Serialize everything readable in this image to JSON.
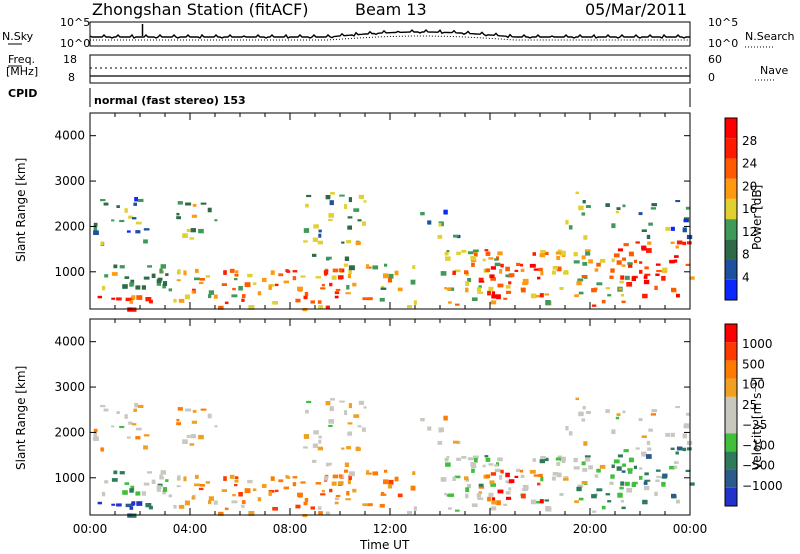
{
  "header": {
    "station": "Zhongshan Station (fitACF)",
    "beam": "Beam 13",
    "date": "05/Mar/2011"
  },
  "strip_panels": {
    "noise": {
      "left_label": "N.Sky",
      "right_label": "N.Search",
      "left_ticks": [
        "10^5",
        "10^0"
      ],
      "right_ticks": [
        "10^5",
        "10^0"
      ]
    },
    "freq": {
      "left_label_line1": "Freq.",
      "left_label_line2": "[MHz]",
      "right_label": "Nave",
      "left_ticks": [
        "18",
        "8"
      ],
      "right_ticks": [
        "60",
        "0"
      ]
    },
    "cpid": {
      "left_label": "CPID",
      "text": "normal (fast stereo) 153"
    }
  },
  "colors": {
    "power_scale": [
      "#0a28ff",
      "#1e50a0",
      "#2e6a48",
      "#3f9a5a",
      "#e0d030",
      "#ff9a10",
      "#ff5a00",
      "#ff1a00",
      "#ff0000"
    ],
    "velocity_scale": [
      "#2233cc",
      "#2d5a8c",
      "#2e7a5a",
      "#3fbf3a",
      "#c8c8c0",
      "#c8c8c0",
      "#f0a020",
      "#ff7a00",
      "#ff3a00",
      "#ff0000"
    ]
  },
  "chart_data": [
    {
      "type": "heatmap",
      "title": "",
      "xlabel": "Time UT",
      "ylabel": "Slant Range [km]",
      "xlim": [
        "00:00",
        "24:00"
      ],
      "ylim": [
        180,
        4500
      ],
      "x_ticks": [
        "00:00",
        "04:00",
        "08:00",
        "12:00",
        "16:00",
        "20:00",
        "00:00"
      ],
      "y_ticks": [
        1000,
        2000,
        3000,
        4000
      ],
      "colorbar": {
        "label": "Power [dB]",
        "ticks": [
          "4",
          "8",
          "12",
          "16",
          "20",
          "24",
          "28"
        ],
        "range": [
          0,
          30
        ]
      },
      "grid": false
    },
    {
      "type": "heatmap",
      "title": "",
      "xlabel": "Time UT",
      "ylabel": "Slant Range [km]",
      "xlim": [
        "00:00",
        "24:00"
      ],
      "ylim": [
        180,
        4500
      ],
      "x_ticks": [
        "00:00",
        "04:00",
        "08:00",
        "12:00",
        "16:00",
        "20:00",
        "00:00"
      ],
      "y_ticks": [
        1000,
        2000,
        3000,
        4000
      ],
      "colorbar": {
        "label": "Velocity [m s⁻¹]",
        "ticks": [
          "1000",
          "500",
          "100",
          "25",
          "−25",
          "−100",
          "−500",
          "−1000"
        ]
      },
      "grid": false
    }
  ]
}
